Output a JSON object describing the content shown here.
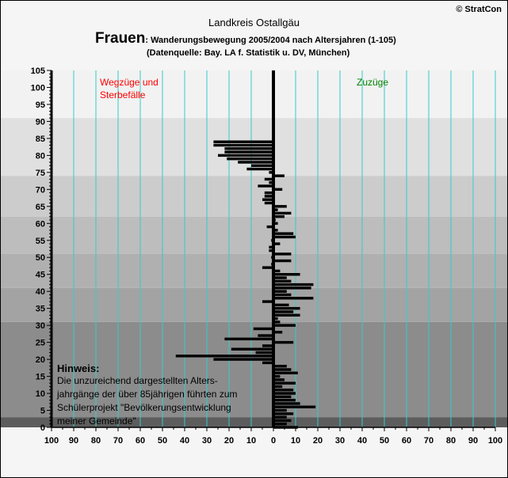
{
  "header": {
    "region": "Landkreis Ostallgäu",
    "gender": "Frauen",
    "gender_suffix": ": Wanderungsbewegung 2005/2004 nach Altersjahren (1-105)",
    "source": "(Datenquelle: Bay. LA f. Statistik u. DV, München)",
    "copyright": "© StratCon"
  },
  "labels": {
    "left_line1": "Wegzüge und",
    "left_line2": "Sterbefälle",
    "right": "Zuzüge"
  },
  "note": {
    "title": "Hinweis:",
    "lines": [
      "Die unzureichend dargestellten Alters-",
      "jahrgänge der über 85jährigen führten zum",
      "Schülerprojekt \"Bevölkerungsentwicklung",
      "meiner Gemeinde\""
    ]
  },
  "colors": {
    "bar": "#000000",
    "grid": "#33cccc",
    "left_label": "#ff0000",
    "right_label": "#008000"
  },
  "chart_data": {
    "type": "bar",
    "orientation": "horizontal",
    "xlim": [
      -100,
      100
    ],
    "ylim": [
      0,
      105
    ],
    "x_ticks": [
      "100",
      "90",
      "80",
      "70",
      "60",
      "50",
      "40",
      "30",
      "20",
      "10",
      "0",
      "10",
      "20",
      "30",
      "40",
      "50",
      "60",
      "70",
      "80",
      "90",
      "100"
    ],
    "y_ticks": [
      "0",
      "5",
      "10",
      "15",
      "20",
      "25",
      "30",
      "35",
      "40",
      "45",
      "50",
      "55",
      "60",
      "65",
      "70",
      "75",
      "80",
      "85",
      "90",
      "95",
      "100",
      "105"
    ],
    "bands": [
      {
        "from": 0,
        "to": 3,
        "color": "#5d5d5d"
      },
      {
        "from": 3,
        "to": 31,
        "color": "#8c8c8c"
      },
      {
        "from": 31,
        "to": 41,
        "color": "#a3a3a3"
      },
      {
        "from": 41,
        "to": 51,
        "color": "#b0b0b0"
      },
      {
        "from": 51,
        "to": 62,
        "color": "#bdbdbd"
      },
      {
        "from": 62,
        "to": 74,
        "color": "#cccccc"
      },
      {
        "from": 74,
        "to": 91,
        "color": "#e0e0e0"
      },
      {
        "from": 91,
        "to": 105,
        "color": "#f2f2f2"
      }
    ],
    "bars": [
      {
        "age": 0,
        "v": 11
      },
      {
        "age": 1,
        "v": 6
      },
      {
        "age": 2,
        "v": 8
      },
      {
        "age": 3,
        "v": 6
      },
      {
        "age": 4,
        "v": 9
      },
      {
        "age": 5,
        "v": 6
      },
      {
        "age": 6,
        "v": 19
      },
      {
        "age": 7,
        "v": 12
      },
      {
        "age": 8,
        "v": 10
      },
      {
        "age": 9,
        "v": 8
      },
      {
        "age": 10,
        "v": 10
      },
      {
        "age": 11,
        "v": 9
      },
      {
        "age": 12,
        "v": 4
      },
      {
        "age": 13,
        "v": 10
      },
      {
        "age": 14,
        "v": 5
      },
      {
        "age": 15,
        "v": 3
      },
      {
        "age": 16,
        "v": 11
      },
      {
        "age": 17,
        "v": 8
      },
      {
        "age": 18,
        "v": 6
      },
      {
        "age": 19,
        "v": -5
      },
      {
        "age": 20,
        "v": -27
      },
      {
        "age": 21,
        "v": -44
      },
      {
        "age": 22,
        "v": -8
      },
      {
        "age": 23,
        "v": -19
      },
      {
        "age": 24,
        "v": -5
      },
      {
        "age": 25,
        "v": 9
      },
      {
        "age": 26,
        "v": -22
      },
      {
        "age": 27,
        "v": -7
      },
      {
        "age": 28,
        "v": 4
      },
      {
        "age": 29,
        "v": -9
      },
      {
        "age": 30,
        "v": 10
      },
      {
        "age": 31,
        "v": 3
      },
      {
        "age": 32,
        "v": 2
      },
      {
        "age": 33,
        "v": 12
      },
      {
        "age": 34,
        "v": 9
      },
      {
        "age": 35,
        "v": 12
      },
      {
        "age": 36,
        "v": 7
      },
      {
        "age": 37,
        "v": -5
      },
      {
        "age": 38,
        "v": 18
      },
      {
        "age": 39,
        "v": 8
      },
      {
        "age": 40,
        "v": 6
      },
      {
        "age": 41,
        "v": 17
      },
      {
        "age": 42,
        "v": 18
      },
      {
        "age": 43,
        "v": 8
      },
      {
        "age": 44,
        "v": 6
      },
      {
        "age": 45,
        "v": 12
      },
      {
        "age": 46,
        "v": 3
      },
      {
        "age": 47,
        "v": -5
      },
      {
        "age": 48,
        "v": -1
      },
      {
        "age": 49,
        "v": 8
      },
      {
        "age": 50,
        "v": -1
      },
      {
        "age": 51,
        "v": 8
      },
      {
        "age": 52,
        "v": -2
      },
      {
        "age": 53,
        "v": -2
      },
      {
        "age": 54,
        "v": 3
      },
      {
        "age": 55,
        "v": -1
      },
      {
        "age": 56,
        "v": 10
      },
      {
        "age": 57,
        "v": 9
      },
      {
        "age": 58,
        "v": 2
      },
      {
        "age": 59,
        "v": -3
      },
      {
        "age": 60,
        "v": 2
      },
      {
        "age": 61,
        "v": 1
      },
      {
        "age": 62,
        "v": 5
      },
      {
        "age": 63,
        "v": 8
      },
      {
        "age": 64,
        "v": 2
      },
      {
        "age": 65,
        "v": 6
      },
      {
        "age": 66,
        "v": -4
      },
      {
        "age": 67,
        "v": -5
      },
      {
        "age": 68,
        "v": -4
      },
      {
        "age": 69,
        "v": -4
      },
      {
        "age": 70,
        "v": 4
      },
      {
        "age": 71,
        "v": -7
      },
      {
        "age": 72,
        "v": -2
      },
      {
        "age": 73,
        "v": -4
      },
      {
        "age": 74,
        "v": 5
      },
      {
        "age": 75,
        "v": -2
      },
      {
        "age": 76,
        "v": -12
      },
      {
        "age": 77,
        "v": -10
      },
      {
        "age": 78,
        "v": -16
      },
      {
        "age": 79,
        "v": -21
      },
      {
        "age": 80,
        "v": -25
      },
      {
        "age": 81,
        "v": -22
      },
      {
        "age": 82,
        "v": -22
      },
      {
        "age": 83,
        "v": -27
      },
      {
        "age": 84,
        "v": -27
      }
    ]
  }
}
